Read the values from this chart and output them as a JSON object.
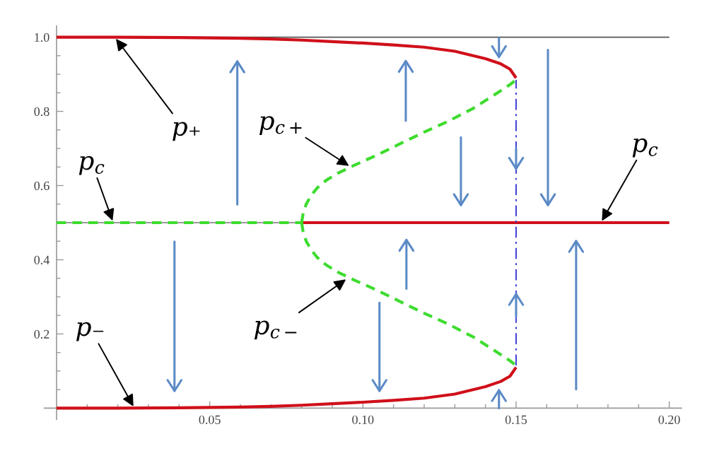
{
  "chart_data": {
    "type": "line",
    "xlim": [
      -0.004,
      0.204
    ],
    "ylim": [
      -0.03,
      1.03
    ],
    "xticks": [
      {
        "value": 0.01,
        "label": null
      },
      {
        "value": 0.02,
        "label": null
      },
      {
        "value": 0.03,
        "label": null
      },
      {
        "value": 0.04,
        "label": null
      },
      0.05,
      {
        "value": 0.06,
        "label": null
      },
      {
        "value": 0.07,
        "label": null
      },
      {
        "value": 0.08,
        "label": null
      },
      {
        "value": 0.09,
        "label": null
      },
      {
        "value": 0.1,
        "label": "0.10"
      },
      {
        "value": 0.11,
        "label": null
      },
      {
        "value": 0.12,
        "label": null
      },
      {
        "value": 0.13,
        "label": null
      },
      {
        "value": 0.14,
        "label": null
      },
      0.15,
      {
        "value": 0.16,
        "label": null
      },
      {
        "value": 0.17,
        "label": null
      },
      {
        "value": 0.18,
        "label": null
      },
      {
        "value": 0.19,
        "label": null
      },
      {
        "value": 0.2,
        "label": "0.20"
      }
    ],
    "yticks": [
      {
        "value": 0.05,
        "label": null
      },
      {
        "value": 0.1,
        "label": null
      },
      {
        "value": 0.15,
        "label": null
      },
      0.2,
      {
        "value": 0.25,
        "label": null
      },
      {
        "value": 0.3,
        "label": null
      },
      {
        "value": 0.35,
        "label": null
      },
      0.4,
      {
        "value": 0.45,
        "label": null
      },
      {
        "value": 0.5,
        "label": null
      },
      {
        "value": 0.55,
        "label": null
      },
      0.6,
      {
        "value": 0.65,
        "label": null
      },
      {
        "value": 0.7,
        "label": null
      },
      {
        "value": 0.75,
        "label": null
      },
      0.8,
      {
        "value": 0.85,
        "label": null
      },
      {
        "value": 0.9,
        "label": null
      },
      {
        "value": 0.95,
        "label": null
      },
      {
        "value": 1,
        "label": "1.0"
      }
    ],
    "marker": "none",
    "ref_lines": [
      {
        "axis": "y",
        "value": 1,
        "color": "#555555"
      },
      {
        "axis": "y",
        "value": 0.5,
        "color": "#9a9a9a"
      }
    ],
    "series": [
      {
        "color": "#d0101a",
        "line_style": "solid",
        "x": [
          0,
          0.02,
          0.04,
          0.06,
          0.07,
          0.08,
          0.09,
          0.1,
          0.11,
          0.12,
          0.13,
          0.135,
          0.14,
          0.145,
          0.148,
          0.15
        ],
        "values": [
          1,
          1,
          0.999,
          0.997,
          0.995,
          0.992,
          0.988,
          0.984,
          0.979,
          0.973,
          0.962,
          0.952,
          0.942,
          0.928,
          0.914,
          0.89
        ]
      },
      {
        "color": "#d0101a",
        "line_style": "solid",
        "x": [
          0,
          0.02,
          0.04,
          0.06,
          0.07,
          0.08,
          0.09,
          0.1,
          0.11,
          0.12,
          0.13,
          0.135,
          0.14,
          0.145,
          0.148,
          0.15
        ],
        "values": [
          0,
          0,
          0.001,
          0.003,
          0.005,
          0.008,
          0.012,
          0.016,
          0.021,
          0.027,
          0.038,
          0.048,
          0.058,
          0.072,
          0.086,
          0.11
        ]
      },
      {
        "color": "#d0101a",
        "line_style": "solid",
        "x": [
          0.08,
          0.2
        ],
        "values": [
          0.5,
          0.5
        ]
      },
      {
        "color": "#3ddc2e",
        "line_style": "dashed",
        "x": [
          0,
          0.08
        ],
        "values": [
          0.5,
          0.5
        ]
      },
      {
        "color": "#3ddc2e",
        "line_style": "dashed",
        "x": [
          0.08,
          0.0805,
          0.0815,
          0.083,
          0.085,
          0.088,
          0.092,
          0.097,
          0.104,
          0.112,
          0.12,
          0.128,
          0.136,
          0.143,
          0.148,
          0.15
        ],
        "values": [
          0.5,
          0.525,
          0.55,
          0.572,
          0.593,
          0.614,
          0.634,
          0.654,
          0.68,
          0.712,
          0.744,
          0.774,
          0.808,
          0.845,
          0.872,
          0.885
        ]
      },
      {
        "color": "#3ddc2e",
        "line_style": "dashed",
        "x": [
          0.08,
          0.0805,
          0.0815,
          0.083,
          0.085,
          0.088,
          0.092,
          0.097,
          0.104,
          0.112,
          0.12,
          0.128,
          0.136,
          0.143,
          0.148,
          0.15
        ],
        "values": [
          0.5,
          0.475,
          0.45,
          0.428,
          0.407,
          0.386,
          0.366,
          0.346,
          0.32,
          0.288,
          0.256,
          0.226,
          0.192,
          0.155,
          0.128,
          0.115
        ]
      },
      {
        "color": "#3b3bd6",
        "line_style": "dashdot",
        "x": [
          0.15,
          0.15
        ],
        "values": [
          0.115,
          0.885
        ]
      }
    ],
    "annotations": [
      {
        "text": "p₊",
        "x": 0.019,
        "y": 1
      },
      {
        "text": "p$_{c}$",
        "x": 0.0185,
        "y": 0.5
      },
      {
        "text": "p$_{c+}$",
        "x": 0.096,
        "y": 0.65
      },
      {
        "text": "p$_{c}$",
        "x": 0.1777,
        "y": 0.5
      },
      {
        "text": "p₋",
        "x": 0.0254,
        "y": 0
      },
      {
        "text": "p$_{c−}$",
        "x": 0.095,
        "y": 0.35
      }
    ]
  }
}
